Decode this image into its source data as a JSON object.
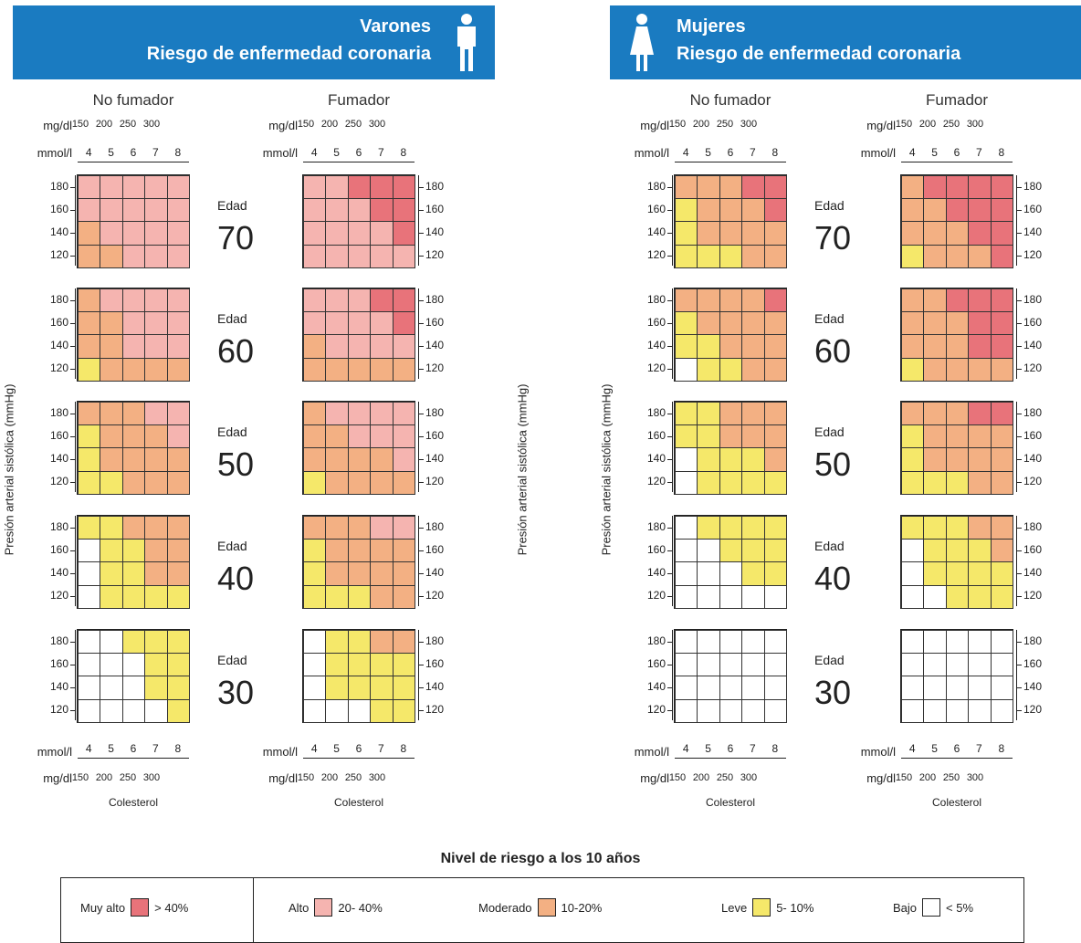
{
  "banners": [
    {
      "line1": "Varones",
      "line2": "Riesgo de enfermedad coronaria",
      "icon": "male-figure-icon"
    },
    {
      "line1": "Mujeres",
      "line2": "Riesgo de enfermedad coronaria",
      "icon": "female-figure-icon"
    }
  ],
  "labels": {
    "no_fumador": "No fumador",
    "fumador": "Fumador",
    "mgdl": "mg/dl",
    "mmoll": "mmol/l",
    "edad": "Edad",
    "ylabel": "Presión arterial sistólica (mmHg)",
    "xlabel": "Colesterol"
  },
  "mgdl_ticks": [
    "150",
    "200",
    "250",
    "300"
  ],
  "mmol_ticks": [
    "4",
    "5",
    "6",
    "7",
    "8"
  ],
  "bp_ticks": [
    "180",
    "160",
    "140",
    "120"
  ],
  "ages": [
    "70",
    "60",
    "50",
    "40",
    "30"
  ],
  "legend": {
    "title": "Nivel de riesgo a los 10 años",
    "items": [
      {
        "name": "Muy alto",
        "range": "> 40%",
        "color": "#e8737a"
      },
      {
        "name": "Alto",
        "range": "20- 40%",
        "color": "#f5b4b0"
      },
      {
        "name": "Moderado",
        "range": "10-20%",
        "color": "#f3b083"
      },
      {
        "name": "Leve",
        "range": "5- 10%",
        "color": "#f5e86a"
      },
      {
        "name": "Bajo",
        "range": "< 5%",
        "color": "#ffffff"
      }
    ]
  },
  "chart_data": {
    "type": "heatmap",
    "x_categories_mmol": [
      "4",
      "5",
      "6",
      "7",
      "8"
    ],
    "y_categories_bp": [
      "180",
      "160",
      "140",
      "120"
    ],
    "risk_codes": {
      "V": "Muy alto",
      "A": "Alto",
      "M": "Moderado",
      "L": "Leve",
      "B": "Bajo"
    },
    "panels": [
      {
        "sex": "Varones",
        "smoker": "No fumador",
        "age": "70",
        "rows": [
          [
            "A",
            "A",
            "A",
            "A",
            "A"
          ],
          [
            "A",
            "A",
            "A",
            "A",
            "A"
          ],
          [
            "M",
            "A",
            "A",
            "A",
            "A"
          ],
          [
            "M",
            "M",
            "A",
            "A",
            "A"
          ]
        ]
      },
      {
        "sex": "Varones",
        "smoker": "Fumador",
        "age": "70",
        "rows": [
          [
            "A",
            "A",
            "V",
            "V",
            "V"
          ],
          [
            "A",
            "A",
            "A",
            "V",
            "V"
          ],
          [
            "A",
            "A",
            "A",
            "A",
            "V"
          ],
          [
            "A",
            "A",
            "A",
            "A",
            "A"
          ]
        ]
      },
      {
        "sex": "Varones",
        "smoker": "No fumador",
        "age": "60",
        "rows": [
          [
            "M",
            "A",
            "A",
            "A",
            "A"
          ],
          [
            "M",
            "M",
            "A",
            "A",
            "A"
          ],
          [
            "M",
            "M",
            "A",
            "A",
            "A"
          ],
          [
            "L",
            "M",
            "M",
            "M",
            "M"
          ]
        ]
      },
      {
        "sex": "Varones",
        "smoker": "Fumador",
        "age": "60",
        "rows": [
          [
            "A",
            "A",
            "A",
            "V",
            "V"
          ],
          [
            "A",
            "A",
            "A",
            "A",
            "V"
          ],
          [
            "M",
            "A",
            "A",
            "A",
            "A"
          ],
          [
            "M",
            "M",
            "M",
            "M",
            "M"
          ]
        ]
      },
      {
        "sex": "Varones",
        "smoker": "No fumador",
        "age": "50",
        "rows": [
          [
            "M",
            "M",
            "M",
            "A",
            "A"
          ],
          [
            "L",
            "M",
            "M",
            "M",
            "A"
          ],
          [
            "L",
            "M",
            "M",
            "M",
            "M"
          ],
          [
            "L",
            "L",
            "M",
            "M",
            "M"
          ]
        ]
      },
      {
        "sex": "Varones",
        "smoker": "Fumador",
        "age": "50",
        "rows": [
          [
            "M",
            "A",
            "A",
            "A",
            "A"
          ],
          [
            "M",
            "M",
            "A",
            "A",
            "A"
          ],
          [
            "M",
            "M",
            "M",
            "M",
            "A"
          ],
          [
            "L",
            "M",
            "M",
            "M",
            "M"
          ]
        ]
      },
      {
        "sex": "Varones",
        "smoker": "No fumador",
        "age": "40",
        "rows": [
          [
            "L",
            "L",
            "M",
            "M",
            "M"
          ],
          [
            "B",
            "L",
            "L",
            "M",
            "M"
          ],
          [
            "B",
            "L",
            "L",
            "M",
            "M"
          ],
          [
            "B",
            "L",
            "L",
            "L",
            "L"
          ]
        ]
      },
      {
        "sex": "Varones",
        "smoker": "Fumador",
        "age": "40",
        "rows": [
          [
            "M",
            "M",
            "M",
            "A",
            "A"
          ],
          [
            "L",
            "M",
            "M",
            "M",
            "M"
          ],
          [
            "L",
            "M",
            "M",
            "M",
            "M"
          ],
          [
            "L",
            "L",
            "L",
            "M",
            "M"
          ]
        ]
      },
      {
        "sex": "Varones",
        "smoker": "No fumador",
        "age": "30",
        "rows": [
          [
            "B",
            "B",
            "L",
            "L",
            "L"
          ],
          [
            "B",
            "B",
            "B",
            "L",
            "L"
          ],
          [
            "B",
            "B",
            "B",
            "L",
            "L"
          ],
          [
            "B",
            "B",
            "B",
            "B",
            "L"
          ]
        ]
      },
      {
        "sex": "Varones",
        "smoker": "Fumador",
        "age": "30",
        "rows": [
          [
            "B",
            "L",
            "L",
            "M",
            "M"
          ],
          [
            "B",
            "L",
            "L",
            "L",
            "L"
          ],
          [
            "B",
            "L",
            "L",
            "L",
            "L"
          ],
          [
            "B",
            "B",
            "B",
            "L",
            "L"
          ]
        ]
      },
      {
        "sex": "Mujeres",
        "smoker": "No fumador",
        "age": "70",
        "rows": [
          [
            "M",
            "M",
            "M",
            "V",
            "V"
          ],
          [
            "L",
            "M",
            "M",
            "M",
            "V"
          ],
          [
            "L",
            "M",
            "M",
            "M",
            "M"
          ],
          [
            "L",
            "L",
            "L",
            "M",
            "M"
          ]
        ]
      },
      {
        "sex": "Mujeres",
        "smoker": "Fumador",
        "age": "70",
        "rows": [
          [
            "M",
            "V",
            "V",
            "V",
            "V"
          ],
          [
            "M",
            "M",
            "V",
            "V",
            "V"
          ],
          [
            "M",
            "M",
            "M",
            "V",
            "V"
          ],
          [
            "L",
            "M",
            "M",
            "M",
            "V"
          ]
        ]
      },
      {
        "sex": "Mujeres",
        "smoker": "No fumador",
        "age": "60",
        "rows": [
          [
            "M",
            "M",
            "M",
            "M",
            "V"
          ],
          [
            "L",
            "M",
            "M",
            "M",
            "M"
          ],
          [
            "L",
            "L",
            "M",
            "M",
            "M"
          ],
          [
            "B",
            "L",
            "L",
            "M",
            "M"
          ]
        ]
      },
      {
        "sex": "Mujeres",
        "smoker": "Fumador",
        "age": "60",
        "rows": [
          [
            "M",
            "M",
            "V",
            "V",
            "V"
          ],
          [
            "M",
            "M",
            "M",
            "V",
            "V"
          ],
          [
            "M",
            "M",
            "M",
            "V",
            "V"
          ],
          [
            "L",
            "M",
            "M",
            "M",
            "M"
          ]
        ]
      },
      {
        "sex": "Mujeres",
        "smoker": "No fumador",
        "age": "50",
        "rows": [
          [
            "L",
            "L",
            "M",
            "M",
            "M"
          ],
          [
            "L",
            "L",
            "M",
            "M",
            "M"
          ],
          [
            "B",
            "L",
            "L",
            "L",
            "M"
          ],
          [
            "B",
            "L",
            "L",
            "L",
            "L"
          ]
        ]
      },
      {
        "sex": "Mujeres",
        "smoker": "Fumador",
        "age": "50",
        "rows": [
          [
            "M",
            "M",
            "M",
            "V",
            "V"
          ],
          [
            "L",
            "M",
            "M",
            "M",
            "M"
          ],
          [
            "L",
            "M",
            "M",
            "M",
            "M"
          ],
          [
            "L",
            "L",
            "L",
            "M",
            "M"
          ]
        ]
      },
      {
        "sex": "Mujeres",
        "smoker": "No fumador",
        "age": "40",
        "rows": [
          [
            "B",
            "L",
            "L",
            "L",
            "L"
          ],
          [
            "B",
            "B",
            "L",
            "L",
            "L"
          ],
          [
            "B",
            "B",
            "B",
            "L",
            "L"
          ],
          [
            "B",
            "B",
            "B",
            "B",
            "B"
          ]
        ]
      },
      {
        "sex": "Mujeres",
        "smoker": "Fumador",
        "age": "40",
        "rows": [
          [
            "L",
            "L",
            "L",
            "M",
            "M"
          ],
          [
            "B",
            "L",
            "L",
            "L",
            "M"
          ],
          [
            "B",
            "L",
            "L",
            "L",
            "L"
          ],
          [
            "B",
            "B",
            "L",
            "L",
            "L"
          ]
        ]
      },
      {
        "sex": "Mujeres",
        "smoker": "No fumador",
        "age": "30",
        "rows": [
          [
            "B",
            "B",
            "B",
            "B",
            "B"
          ],
          [
            "B",
            "B",
            "B",
            "B",
            "B"
          ],
          [
            "B",
            "B",
            "B",
            "B",
            "B"
          ],
          [
            "B",
            "B",
            "B",
            "B",
            "B"
          ]
        ]
      },
      {
        "sex": "Mujeres",
        "smoker": "Fumador",
        "age": "30",
        "rows": [
          [
            "B",
            "B",
            "B",
            "B",
            "B"
          ],
          [
            "B",
            "B",
            "B",
            "B",
            "B"
          ],
          [
            "B",
            "B",
            "B",
            "B",
            "B"
          ],
          [
            "B",
            "B",
            "B",
            "B",
            "B"
          ]
        ]
      }
    ]
  }
}
